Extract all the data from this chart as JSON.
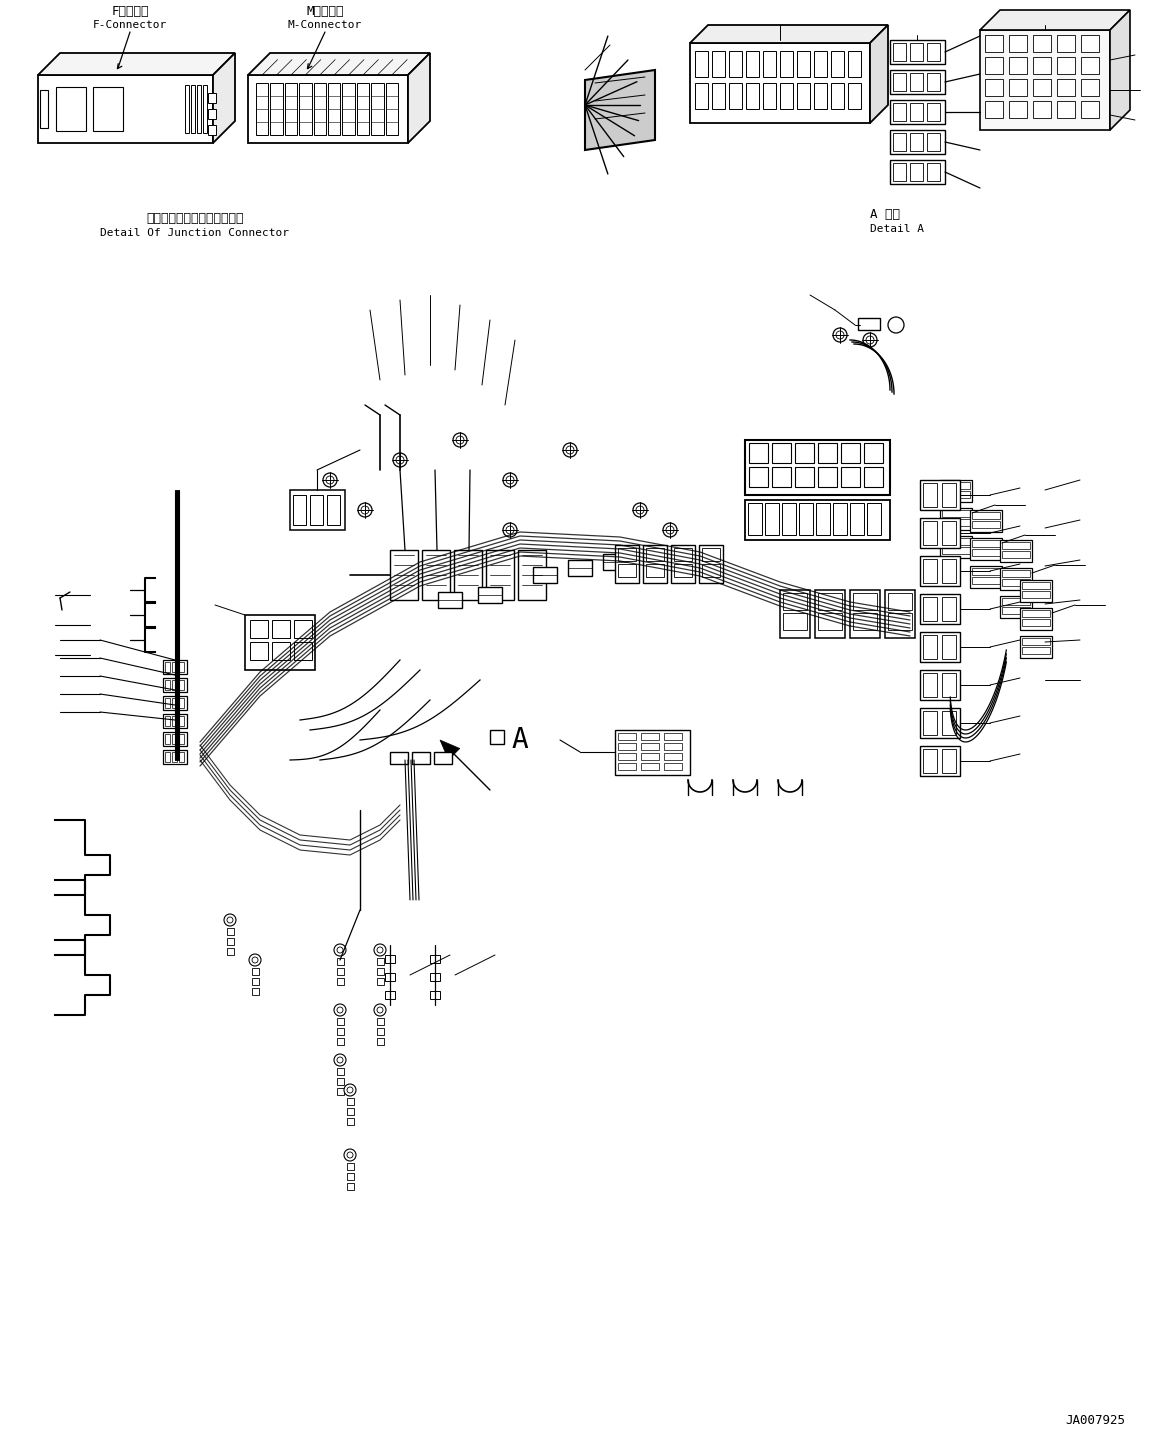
{
  "fig_width": 11.63,
  "fig_height": 14.45,
  "dpi": 100,
  "bg_color": "#ffffff",
  "title_code": "JA007925",
  "label_f_connector_jp": "Fコネクタ",
  "label_f_connector_en": "F-Connector",
  "label_m_connector_jp": "Mコネクタ",
  "label_m_connector_en": "M-Connector",
  "label_junction_jp": "ジャンクションコネクタ詳細",
  "label_junction_en": "Detail Of Junction Connector",
  "label_detail_a_jp": "A 詳細",
  "label_detail_a_en": "Detail A",
  "label_a": "A",
  "line_color": "#000000",
  "text_color": "#000000",
  "font_size_small": 8,
  "font_size_label": 9,
  "font_size_code": 9,
  "font_size_large": 14,
  "font_family": "monospace"
}
